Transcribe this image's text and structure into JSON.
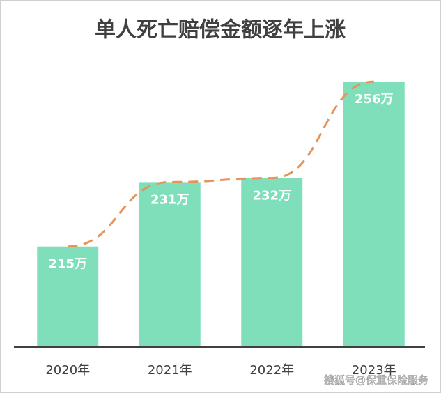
{
  "chart_data": {
    "type": "bar",
    "title": "单人死亡赔偿金额逐年上涨",
    "categories": [
      "2020年",
      "2021年",
      "2022年",
      "2023年"
    ],
    "values": [
      215,
      231,
      232,
      256
    ],
    "value_labels": [
      "215万",
      "231万",
      "232万",
      "256万"
    ],
    "color": "#80dfbb",
    "trend_color": "#e8935a",
    "ylim": [
      190,
      260
    ],
    "watermark": "搜狐号@保重保险服务"
  }
}
